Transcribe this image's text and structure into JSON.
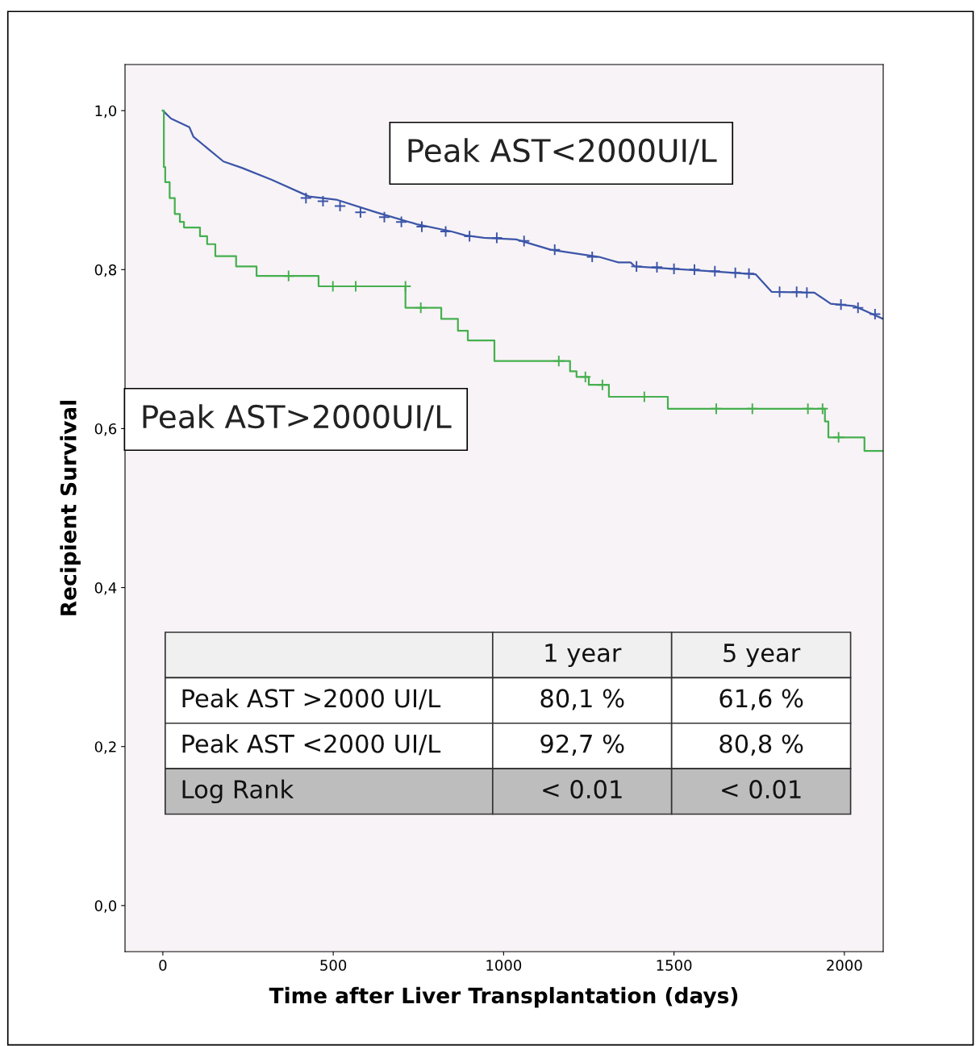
{
  "chart_data": {
    "type": "step",
    "xlabel": "Time after Liver Transplantation (days)",
    "ylabel": "Recipient Survival",
    "xlim": [
      -111,
      2114
    ],
    "ylim": [
      -0.058,
      1.058
    ],
    "xticks": [
      0,
      500,
      1000,
      1500,
      2000
    ],
    "yticks": [
      {
        "value": 0.0,
        "label": "0,0"
      },
      {
        "value": 0.2,
        "label": "0,2"
      },
      {
        "value": 0.4,
        "label": "0,4"
      },
      {
        "value": 0.6,
        "label": "0,6"
      },
      {
        "value": 0.8,
        "label": "0,8"
      },
      {
        "value": 1.0,
        "label": "1,0"
      }
    ],
    "grid": false,
    "legend": false,
    "series": [
      {
        "name": "Peak AST<2000UI/L",
        "type": "line",
        "color": "#3b55a8",
        "x": [
          0,
          24,
          78,
          90,
          178,
          232,
          320,
          429,
          509,
          627,
          746,
          847,
          888,
          942,
          1037,
          1138,
          1280,
          1337,
          1373,
          1385,
          1574,
          1740,
          1787,
          1912,
          1960,
          2031,
          2114
        ],
        "values": [
          1.0,
          0.99,
          0.979,
          0.967,
          0.936,
          0.928,
          0.913,
          0.892,
          0.888,
          0.872,
          0.857,
          0.848,
          0.843,
          0.84,
          0.838,
          0.825,
          0.816,
          0.809,
          0.809,
          0.804,
          0.799,
          0.794,
          0.772,
          0.771,
          0.757,
          0.754,
          0.738
        ]
      },
      {
        "name": "Peak AST>2000UI/L",
        "color": "#45b04f",
        "x": [
          0,
          3,
          7,
          20,
          35,
          50,
          62,
          109,
          130,
          154,
          215,
          275,
          457,
          712,
          817,
          866,
          895,
          973,
          1195,
          1214,
          1250,
          1309,
          1482,
          1943,
          1953,
          2059,
          2114
        ],
        "values": [
          1.0,
          0.929,
          0.91,
          0.89,
          0.87,
          0.86,
          0.853,
          0.842,
          0.832,
          0.817,
          0.804,
          0.792,
          0.779,
          0.752,
          0.738,
          0.723,
          0.711,
          0.685,
          0.672,
          0.665,
          0.655,
          0.64,
          0.625,
          0.609,
          0.589,
          0.572,
          0.572
        ]
      },
      {
        "type": "scatter",
        "marker": "cross",
        "color": "#45b04f",
        "x": [
          369,
          499,
          566,
          712,
          757,
          1162,
          1240,
          1290,
          1413,
          1624,
          1730,
          1893,
          1936,
          1983
        ],
        "values": [
          0.792,
          0.779,
          0.779,
          0.779,
          0.752,
          0.685,
          0.665,
          0.655,
          0.64,
          0.625,
          0.625,
          0.625,
          0.625,
          0.589
        ]
      },
      {
        "type": "scatter",
        "marker": "cross",
        "color": "#3b55a8",
        "x": [
          420,
          470,
          520,
          580,
          650,
          700,
          760,
          830,
          900,
          980,
          1060,
          1150,
          1260,
          1390,
          1450,
          1500,
          1560,
          1620,
          1680,
          1720,
          1810,
          1860,
          1890,
          1990,
          2040,
          2090
        ],
        "values": [
          0.89,
          0.886,
          0.88,
          0.872,
          0.866,
          0.86,
          0.854,
          0.848,
          0.842,
          0.84,
          0.836,
          0.825,
          0.816,
          0.804,
          0.803,
          0.801,
          0.8,
          0.798,
          0.796,
          0.795,
          0.772,
          0.772,
          0.771,
          0.756,
          0.752,
          0.744
        ]
      }
    ],
    "annotations": [
      "1 year",
      "5 year",
      "Peak AST >2000 UI/L",
      "80,1 %",
      "61,6 %",
      "Peak AST <2000 UI/L",
      "92,7 %",
      "80,8 %",
      "Log Rank",
      "< 0.01",
      "< 0.01"
    ]
  }
}
